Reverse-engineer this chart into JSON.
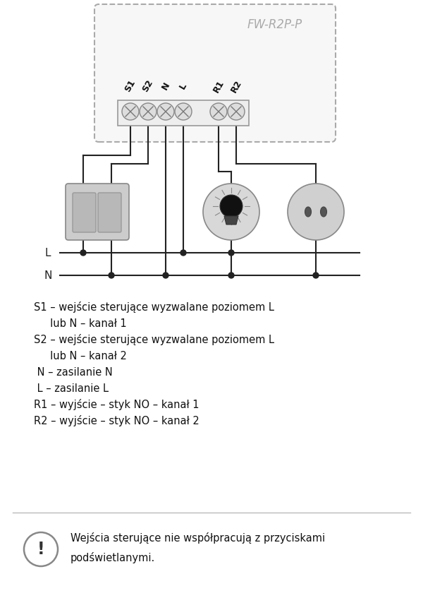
{
  "bg_color": "#ffffff",
  "line_color": "#222222",
  "device_label": "FW-R2P-P",
  "terminal_labels": [
    "S1",
    "S2",
    "N",
    "L",
    "R1",
    "R2"
  ],
  "legend_lines": [
    "S1 – wejście sterujące wyzwalane poziomem L",
    "     lub N – kanał 1",
    "S2 – wejście sterujące wyzwalane poziomem L",
    "     lub N – kanał 2",
    " N – zasilanie N",
    " L – zasilanie L",
    "R1 – wyjście – styk NO – kanał 1",
    "R2 – wyjście – styk NO – kanał 2"
  ],
  "warning_text_line1": "Wejścia sterujące nie współpracują z przyciskami",
  "warning_text_line2": "podświetlanymi.",
  "gray_light": "#e8e8e8",
  "gray_medium": "#aaaaaa",
  "gray_dark": "#666666",
  "dashed_color": "#aaaaaa",
  "fig_w": 6.0,
  "fig_h": 8.47,
  "dpi": 100
}
